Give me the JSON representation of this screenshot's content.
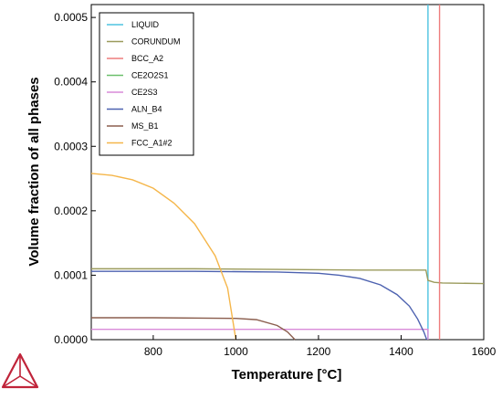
{
  "chart_data": {
    "type": "line",
    "xlabel": "Temperature [°C]",
    "ylabel": "Volume fraction of all phases",
    "xlim": [
      650,
      1600
    ],
    "ylim": [
      0,
      0.00052
    ],
    "x_ticks": [
      800,
      1000,
      1200,
      1400,
      1600
    ],
    "x_tick_labels": [
      "800",
      "1000",
      "1200",
      "1400",
      "1600"
    ],
    "y_ticks": [
      0,
      0.0001,
      0.0002,
      0.0003,
      0.0004,
      0.0005
    ],
    "y_tick_labels": [
      "0.0000",
      "0.0001",
      "0.0002",
      "0.0003",
      "0.0004",
      "0.0005"
    ],
    "grid": false,
    "legend_position": "top-left",
    "series": [
      {
        "name": "LIQUID",
        "color": "#4ec3e0",
        "points": [
          [
            1465,
            0
          ],
          [
            1465,
            0.00052
          ]
        ]
      },
      {
        "name": "CORUNDUM",
        "color": "#9b9b5c",
        "points": [
          [
            650,
            0.00011
          ],
          [
            900,
            0.00011
          ],
          [
            1100,
            0.000109
          ],
          [
            1300,
            0.000108
          ],
          [
            1460,
            0.000108
          ],
          [
            1465,
            9.2e-05
          ],
          [
            1480,
            8.9e-05
          ],
          [
            1500,
            8.8e-05
          ],
          [
            1600,
            8.7e-05
          ]
        ]
      },
      {
        "name": "BCC_A2",
        "color": "#ee7d7d",
        "points": [
          [
            1493,
            0
          ],
          [
            1493,
            0.00052
          ]
        ]
      },
      {
        "name": "CE2O2S1",
        "color": "#6cbf6c",
        "points": []
      },
      {
        "name": "CE2S3",
        "color": "#d98ad9",
        "points": [
          [
            650,
            1.6e-05
          ],
          [
            900,
            1.6e-05
          ],
          [
            1200,
            1.6e-05
          ],
          [
            1465,
            1.6e-05
          ],
          [
            1465,
            0
          ]
        ]
      },
      {
        "name": "ALN_B4",
        "color": "#4d62b0",
        "points": [
          [
            650,
            0.000106
          ],
          [
            900,
            0.000106
          ],
          [
            1100,
            0.000105
          ],
          [
            1200,
            0.000103
          ],
          [
            1250,
            0.0001
          ],
          [
            1300,
            9.5e-05
          ],
          [
            1350,
            8.5e-05
          ],
          [
            1390,
            7e-05
          ],
          [
            1420,
            5.2e-05
          ],
          [
            1440,
            3.2e-05
          ],
          [
            1455,
            1.2e-05
          ],
          [
            1462,
            0
          ]
        ]
      },
      {
        "name": "MS_B1",
        "color": "#8b5e4e",
        "points": [
          [
            650,
            3.4e-05
          ],
          [
            800,
            3.4e-05
          ],
          [
            1000,
            3.3e-05
          ],
          [
            1050,
            3.1e-05
          ],
          [
            1100,
            2.2e-05
          ],
          [
            1125,
            1.2e-05
          ],
          [
            1143,
            0
          ]
        ]
      },
      {
        "name": "FCC_A1#2",
        "color": "#f5b64a",
        "points": [
          [
            650,
            0.000258
          ],
          [
            700,
            0.000255
          ],
          [
            750,
            0.000248
          ],
          [
            800,
            0.000235
          ],
          [
            850,
            0.000212
          ],
          [
            900,
            0.00018
          ],
          [
            950,
            0.00013
          ],
          [
            980,
            8e-05
          ],
          [
            1000,
            0
          ]
        ]
      }
    ]
  },
  "logo": {
    "name": "thermo-calc-logo",
    "color": "#c0243a"
  }
}
